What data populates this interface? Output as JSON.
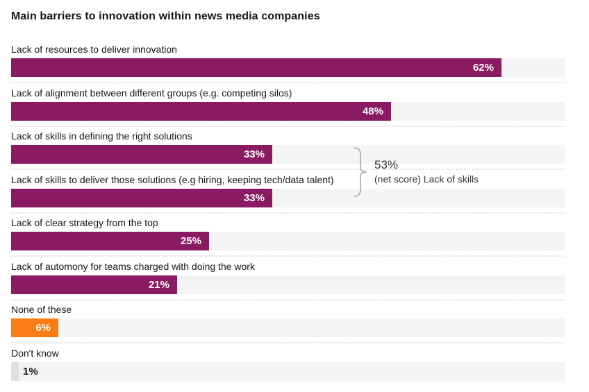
{
  "title": "Main barriers to innovation within news media companies",
  "colors": {
    "text": "#161616",
    "track": "#f4f4f4",
    "separator": "#e0e0e0",
    "bracket": "#a8a8a8",
    "annotation_text": "#333333",
    "value_text_inside": "#ffffff",
    "bar_primary": "#8a1a62",
    "bar_none": "#fb7c14",
    "bar_dontknow": "#dde1e6"
  },
  "annotation": {
    "value": "53%",
    "text": "(net score) Lack of skills"
  },
  "rows": [
    {
      "label": "Lack of resources to deliver innovation",
      "value": 62,
      "value_label": "62%",
      "color_key": "primary",
      "value_position": "inside"
    },
    {
      "label": "Lack of alignment between different groups (e.g. competing silos)",
      "value": 48,
      "value_label": "48%",
      "color_key": "primary",
      "value_position": "inside"
    },
    {
      "label": "Lack of skills in defining the right solutions",
      "value": 33,
      "value_label": "33%",
      "color_key": "primary",
      "value_position": "inside"
    },
    {
      "label": "Lack of skills to deliver those solutions (e.g hiring, keeping tech/data talent)",
      "value": 33,
      "value_label": "33%",
      "color_key": "primary",
      "value_position": "inside"
    },
    {
      "label": "Lack of clear strategy from the top",
      "value": 25,
      "value_label": "25%",
      "color_key": "primary",
      "value_position": "inside"
    },
    {
      "label": "Lack of automony for teams charged with doing the work",
      "value": 21,
      "value_label": "21%",
      "color_key": "primary",
      "value_position": "inside"
    },
    {
      "label": "None of these",
      "value": 6,
      "value_label": "6%",
      "color_key": "none",
      "value_position": "inside"
    },
    {
      "label": "Don't know",
      "value": 1,
      "value_label": "1%",
      "color_key": "dontknow",
      "value_position": "outside"
    }
  ],
  "chart_data": {
    "type": "bar",
    "orientation": "horizontal",
    "title": "Main barriers to innovation within news media companies",
    "categories": [
      "Lack of resources to deliver innovation",
      "Lack of alignment between different groups (e.g. competing silos)",
      "Lack of skills in defining the right solutions",
      "Lack of skills to deliver those solutions (e.g hiring, keeping tech/data talent)",
      "Lack of clear strategy from the top",
      "Lack of automony for teams charged with doing the work",
      "None of these",
      "Don't know"
    ],
    "values": [
      62,
      48,
      33,
      33,
      25,
      21,
      6,
      1
    ],
    "value_labels": [
      "62%",
      "48%",
      "33%",
      "33%",
      "25%",
      "21%",
      "6%",
      "1%"
    ],
    "xlabel": "",
    "ylabel": "",
    "xlim": [
      0,
      70
    ],
    "grid": false,
    "legend": "none",
    "bar_colors": [
      "#8a1a62",
      "#8a1a62",
      "#8a1a62",
      "#8a1a62",
      "#8a1a62",
      "#8a1a62",
      "#fb7c14",
      "#dde1e6"
    ],
    "annotations": [
      {
        "text": "53% (net score) Lack of skills",
        "applies_to_categories": [
          "Lack of skills in defining the right solutions",
          "Lack of skills to deliver those solutions (e.g hiring, keeping tech/data talent)"
        ]
      }
    ]
  }
}
